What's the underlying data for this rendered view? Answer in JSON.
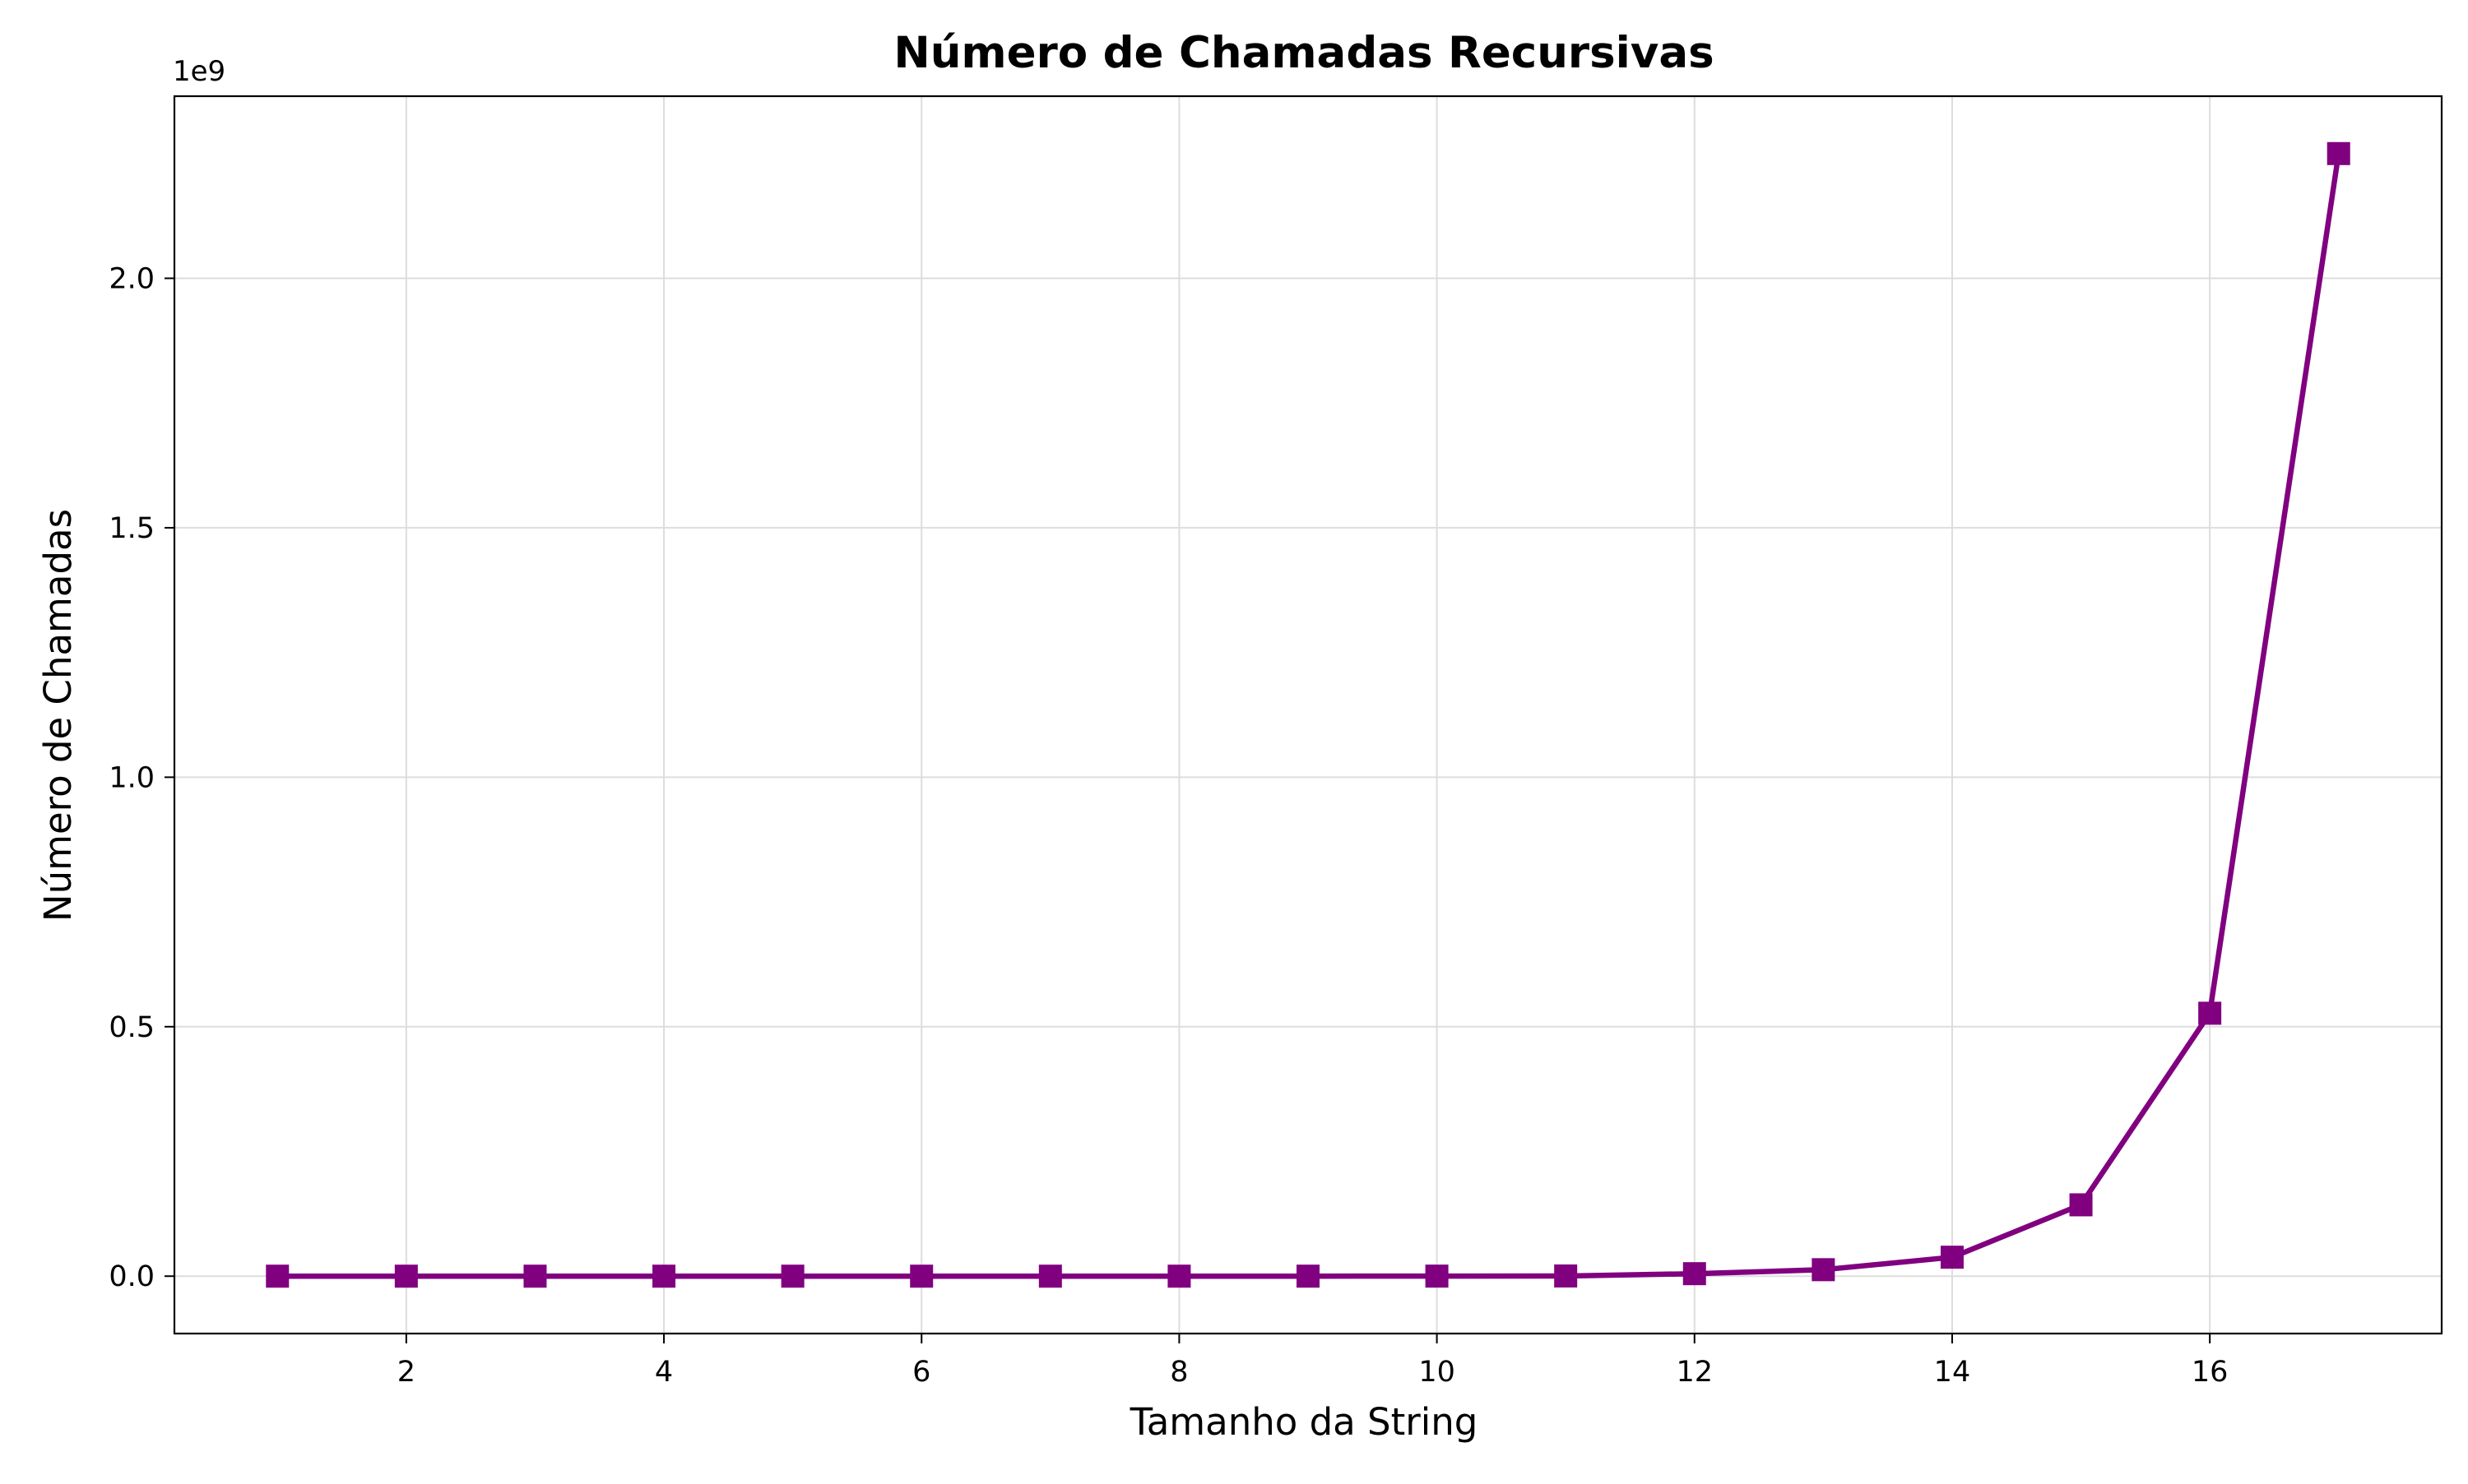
{
  "colors": {
    "series": "#800080",
    "grid": "#dddddd",
    "axes": "#000000"
  },
  "chart_data": {
    "type": "line",
    "title": "Número de Chamadas Recursivas",
    "xlabel": "Tamanho da String",
    "ylabel": "Número de Chamadas",
    "y_offset_label": "1e9",
    "xlim": [
      0.2,
      17.8
    ],
    "ylim": [
      -115000000,
      2365000000
    ],
    "x_ticks": [
      2,
      4,
      6,
      8,
      10,
      12,
      14,
      16
    ],
    "x_tick_labels": [
      "2",
      "4",
      "6",
      "8",
      "10",
      "12",
      "14",
      "16"
    ],
    "y_ticks": [
      0,
      500000000,
      1000000000,
      1500000000,
      2000000000
    ],
    "y_tick_labels": [
      "0.0",
      "0.5",
      "1.0",
      "1.5",
      "2.0"
    ],
    "grid": true,
    "marker": "square",
    "x": [
      1,
      2,
      3,
      4,
      5,
      6,
      7,
      8,
      9,
      10,
      11,
      12,
      13,
      14,
      15,
      16,
      17
    ],
    "series": [
      {
        "values": [
          1,
          3,
          11,
          41,
          153,
          571,
          2131,
          7953,
          29681,
          110771,
          413403,
          5000000,
          13000000,
          38000000,
          143000000,
          527000000,
          2250000000
        ]
      }
    ]
  }
}
